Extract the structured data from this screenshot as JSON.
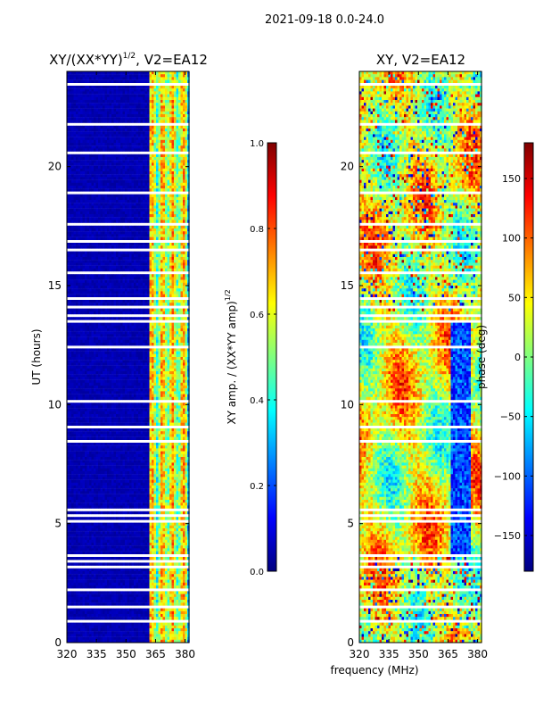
{
  "suptitle": "2021-09-18 0.0-24.0",
  "xlabel_shared": "frequency (MHz)",
  "colors": {
    "jet": [
      "#00007f",
      "#0000ff",
      "#007fff",
      "#00ffff",
      "#7fff7f",
      "#ffff00",
      "#ff7f00",
      "#ff0000",
      "#7f0000"
    ],
    "gap": "#ffffff"
  },
  "chart_data": [
    {
      "type": "heatmap",
      "title_main": "XY/(XX*YY)",
      "title_sup": "1/2",
      "title_tail": ", V2=EA12",
      "xlabel": "",
      "ylabel": "UT (hours)",
      "xlim": [
        320,
        382
      ],
      "ylim": [
        0,
        24
      ],
      "xticks": [
        320,
        335,
        350,
        365,
        380
      ],
      "yticks": [
        0,
        5,
        10,
        15,
        20
      ],
      "colorbar": {
        "label_main": "XY amp. / (XX*YY amp)",
        "label_sup": "1/2",
        "range": [
          0.0,
          1.0
        ],
        "ticks": [
          "0.0",
          "0.2",
          "0.4",
          "0.6",
          "0.8",
          "1.0"
        ]
      },
      "description_values": {
        "low_band_mhz": [
          320,
          360
        ],
        "low_band_level": 0.05,
        "high_band_mhz": [
          360,
          382
        ],
        "high_band_level_range": [
          0.3,
          0.75
        ]
      }
    },
    {
      "type": "heatmap",
      "title_main": "XY, V2=EA12",
      "title_sup": "",
      "title_tail": "",
      "xlabel": "frequency (MHz)",
      "ylabel": "",
      "xlim": [
        320,
        382
      ],
      "ylim": [
        0,
        24
      ],
      "xticks": [
        320,
        335,
        350,
        365,
        380
      ],
      "yticks": [
        0,
        5,
        10,
        15,
        20
      ],
      "colorbar": {
        "label_main": "phase (deg)",
        "label_sup": "",
        "range": [
          -180,
          180
        ],
        "ticks": [
          "−150",
          "−100",
          "−50",
          "0",
          "50",
          "100",
          "150"
        ]
      },
      "description_values": {
        "typical_phase_deg_range": [
          -60,
          120
        ],
        "dropout_rows_hours": [
          3.6,
          5.3,
          13.7,
          14.6,
          20.6
        ]
      }
    }
  ],
  "gaps_hours": [
    [
      0.95,
      1.05
    ],
    [
      1.45,
      1.6
    ],
    [
      2.25,
      2.3
    ],
    [
      2.7,
      2.75
    ],
    [
      3.15,
      3.25
    ],
    [
      3.4,
      3.55
    ],
    [
      3.6,
      3.75
    ],
    [
      5.15,
      5.25
    ],
    [
      5.3,
      5.45
    ],
    [
      5.55,
      5.65
    ],
    [
      6.55,
      6.6
    ],
    [
      8.05,
      8.1
    ],
    [
      8.5,
      8.55
    ],
    [
      9.1,
      9.15
    ],
    [
      10.2,
      10.25
    ],
    [
      10.75,
      10.8
    ],
    [
      11.3,
      11.35
    ],
    [
      11.9,
      11.95
    ],
    [
      12.45,
      12.5
    ],
    [
      13.55,
      13.65
    ],
    [
      13.75,
      13.85
    ],
    [
      14.1,
      14.2
    ],
    [
      14.45,
      14.55
    ],
    [
      15.6,
      15.65
    ],
    [
      16.5,
      16.6
    ],
    [
      16.85,
      16.95
    ],
    [
      17.6,
      17.65
    ],
    [
      18.3,
      18.35
    ],
    [
      18.95,
      19.0
    ],
    [
      19.6,
      19.65
    ],
    [
      20.55,
      20.75
    ],
    [
      21.25,
      21.3
    ],
    [
      21.8,
      21.85
    ],
    [
      22.6,
      22.65
    ],
    [
      23.05,
      23.15
    ],
    [
      23.45,
      23.55
    ]
  ]
}
